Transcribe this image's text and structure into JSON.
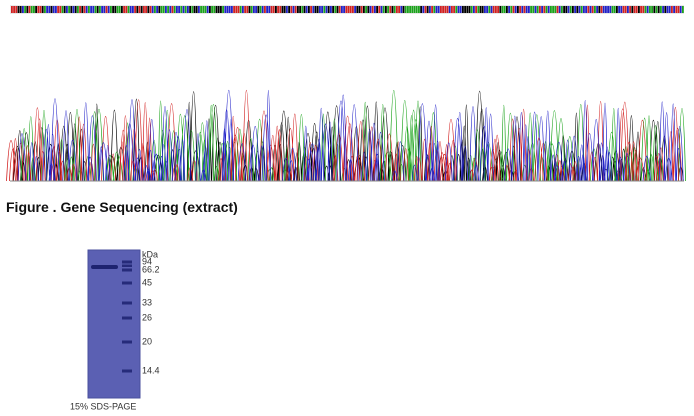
{
  "figure_caption": "Figure . Gene Sequencing (extract)",
  "gel": {
    "unit": "kDa",
    "markers": [
      "94",
      "66.2",
      "45",
      "33",
      "26",
      "20",
      "14.4"
    ],
    "caption": "15% SDS-PAGE"
  }
}
